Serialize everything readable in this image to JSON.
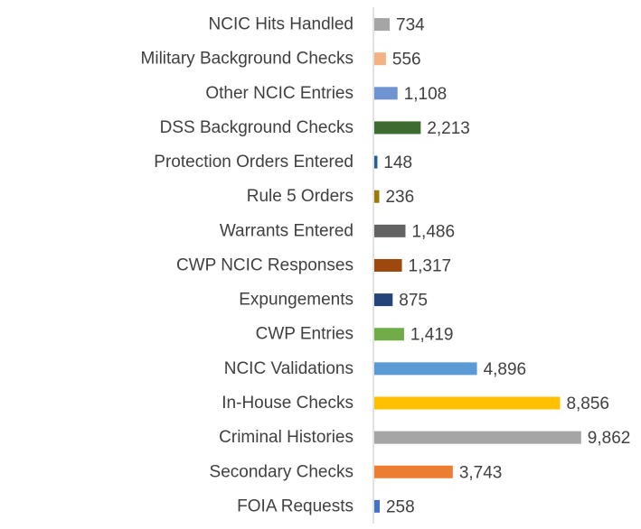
{
  "chart_data": {
    "type": "bar",
    "orientation": "horizontal",
    "categories": [
      "NCIC Hits Handled",
      "Military Background Checks",
      "Other NCIC Entries",
      "DSS Background Checks",
      "Protection Orders Entered",
      "Rule 5 Orders",
      "Warrants Entered",
      "CWP NCIC Responses",
      "Expungements",
      "CWP Entries",
      "NCIC Validations",
      "In-House Checks",
      "Criminal Histories",
      "Secondary Checks",
      "FOIA Requests"
    ],
    "values": [
      734,
      556,
      1108,
      2213,
      148,
      236,
      1486,
      1317,
      875,
      1419,
      4896,
      8856,
      9862,
      3743,
      258
    ],
    "value_labels": [
      "734",
      "556",
      "1,108",
      "2,213",
      "148",
      "236",
      "1,486",
      "1,317",
      "875",
      "1,419",
      "4,896",
      "8,856",
      "9,862",
      "3,743",
      "258"
    ],
    "colors": [
      "#a5a5a5",
      "#f4b183",
      "#6f94d1",
      "#3e6b2f",
      "#255e91",
      "#9c7a0a",
      "#636363",
      "#9e480e",
      "#264478",
      "#70ad47",
      "#5b9bd5",
      "#ffc000",
      "#a5a5a5",
      "#ed7d31",
      "#4472c4"
    ],
    "xlim": [
      0,
      10000
    ],
    "axis_line_color": "#d9d9d9",
    "grid": false,
    "title": "",
    "xlabel": "",
    "ylabel": ""
  }
}
